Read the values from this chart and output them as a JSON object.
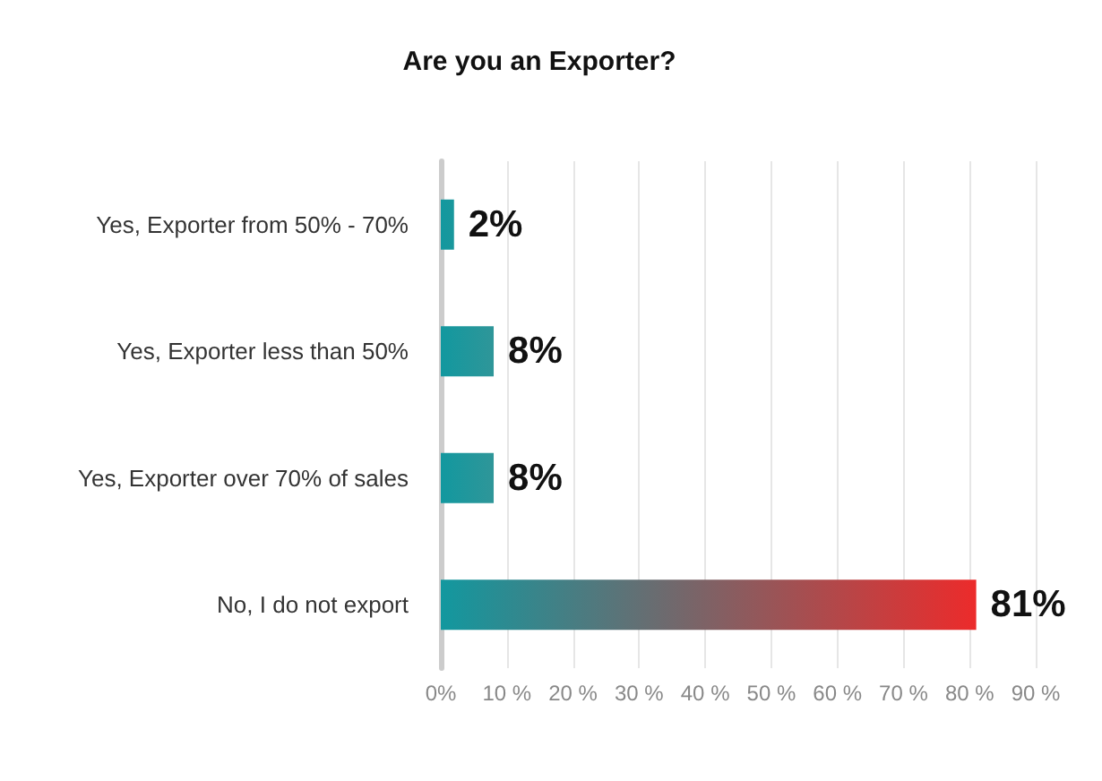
{
  "chart_data": {
    "type": "bar",
    "orientation": "horizontal",
    "title": "Are you an Exporter?",
    "categories": [
      "Yes, Exporter from 50% - 70%",
      "Yes, Exporter less than 50%",
      "Yes, Exporter over 70% of sales",
      "No, I do not export"
    ],
    "values": [
      2,
      8,
      8,
      81
    ],
    "value_labels": [
      "2%",
      "8%",
      "8%",
      "81%"
    ],
    "color": "#12989f",
    "colors": [
      "#1a979c",
      "#2f9699",
      "#2f9699",
      "#ec2b2b"
    ],
    "xlim": [
      0,
      90
    ],
    "xticks": [
      {
        "value": 0,
        "label": "0%"
      },
      {
        "value": 10,
        "label": "10 %"
      },
      {
        "value": 20,
        "label": "20 %"
      },
      {
        "value": 30,
        "label": "30 %"
      },
      {
        "value": 40,
        "label": "40 %"
      },
      {
        "value": 50,
        "label": "50 %"
      },
      {
        "value": 60,
        "label": "60 %"
      },
      {
        "value": 70,
        "label": "70 %"
      },
      {
        "value": 80,
        "label": "80 %"
      },
      {
        "value": 90,
        "label": "90 %"
      }
    ],
    "grid": "x"
  }
}
